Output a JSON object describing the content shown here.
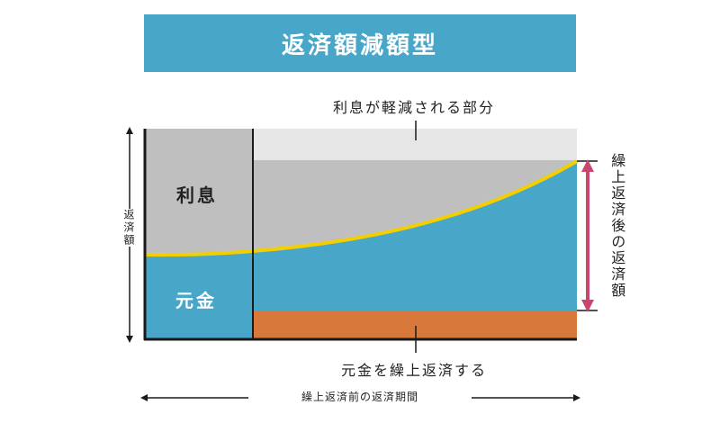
{
  "title": "返済額減額型",
  "labels": {
    "reduced_interest": "利息が軽減される部分",
    "prepay_principal": "元金を繰上返済する",
    "pre_prepay_period": "繰上返済前の返済期間",
    "payment_amount": "返済額",
    "post_prepay_payment": "繰上返済後の返済額",
    "interest": "利息",
    "principal": "元金"
  },
  "colors": {
    "banner": "#48a7c9",
    "principal": "#48a7c9",
    "interest": "#bfbfbf",
    "reduced_interest_area": "#e6e6e6",
    "prepaid_principal": "#d8783b",
    "boundary_curve": "#f3cf00",
    "post_payment_arrow": "#c8466f",
    "axis": "#1a1a1a"
  }
}
